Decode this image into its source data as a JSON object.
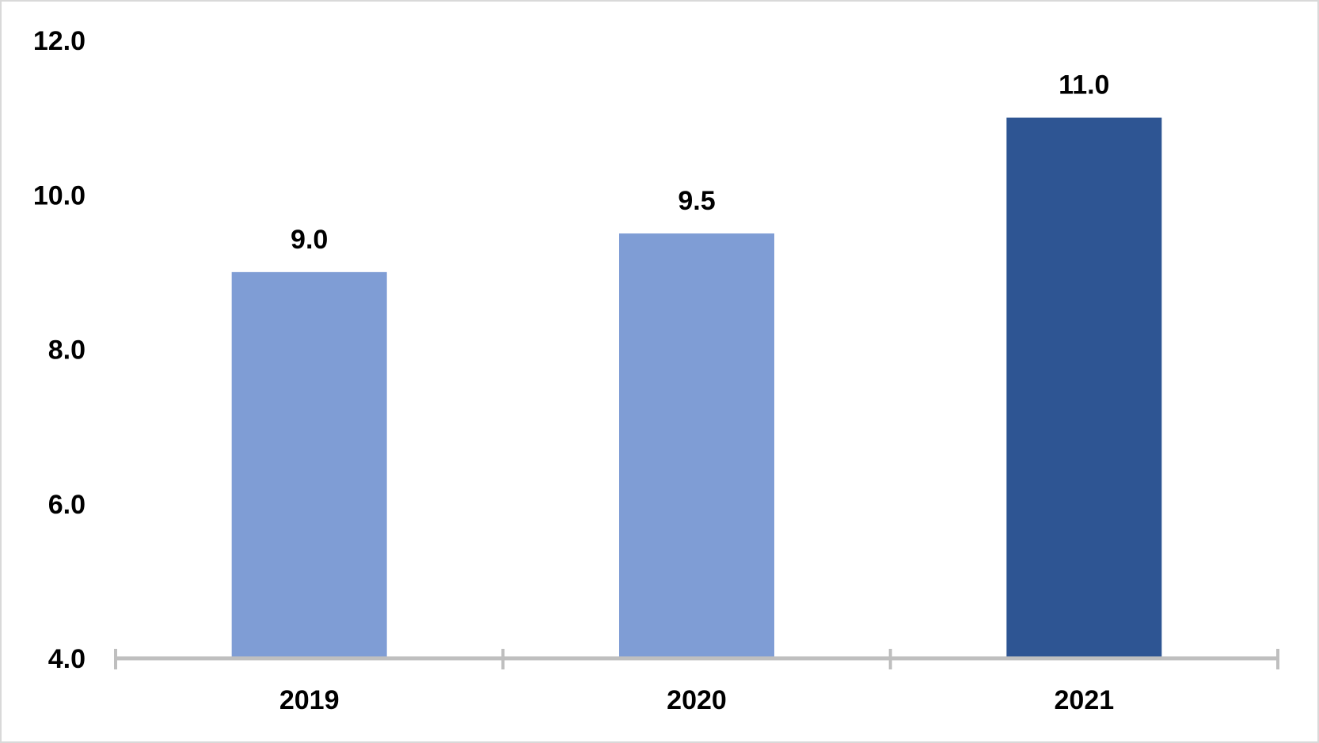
{
  "chart_data": {
    "type": "bar",
    "categories": [
      "2019",
      "2020",
      "2021"
    ],
    "values": [
      9.0,
      9.5,
      11.0
    ],
    "data_labels": [
      "9.0",
      "9.5",
      "11.0"
    ],
    "y_ticks": [
      "4.0",
      "6.0",
      "8.0",
      "10.0",
      "12.0"
    ],
    "y_tick_values": [
      4,
      6,
      8,
      10,
      12
    ],
    "ylim": [
      4,
      12
    ],
    "grid": false,
    "legend": "none",
    "bar_colors": [
      "#7f9dd5",
      "#7f9dd5",
      "#2e5593"
    ],
    "axis_color": "#bfbfbf",
    "title": "",
    "xlabel": "",
    "ylabel": ""
  }
}
